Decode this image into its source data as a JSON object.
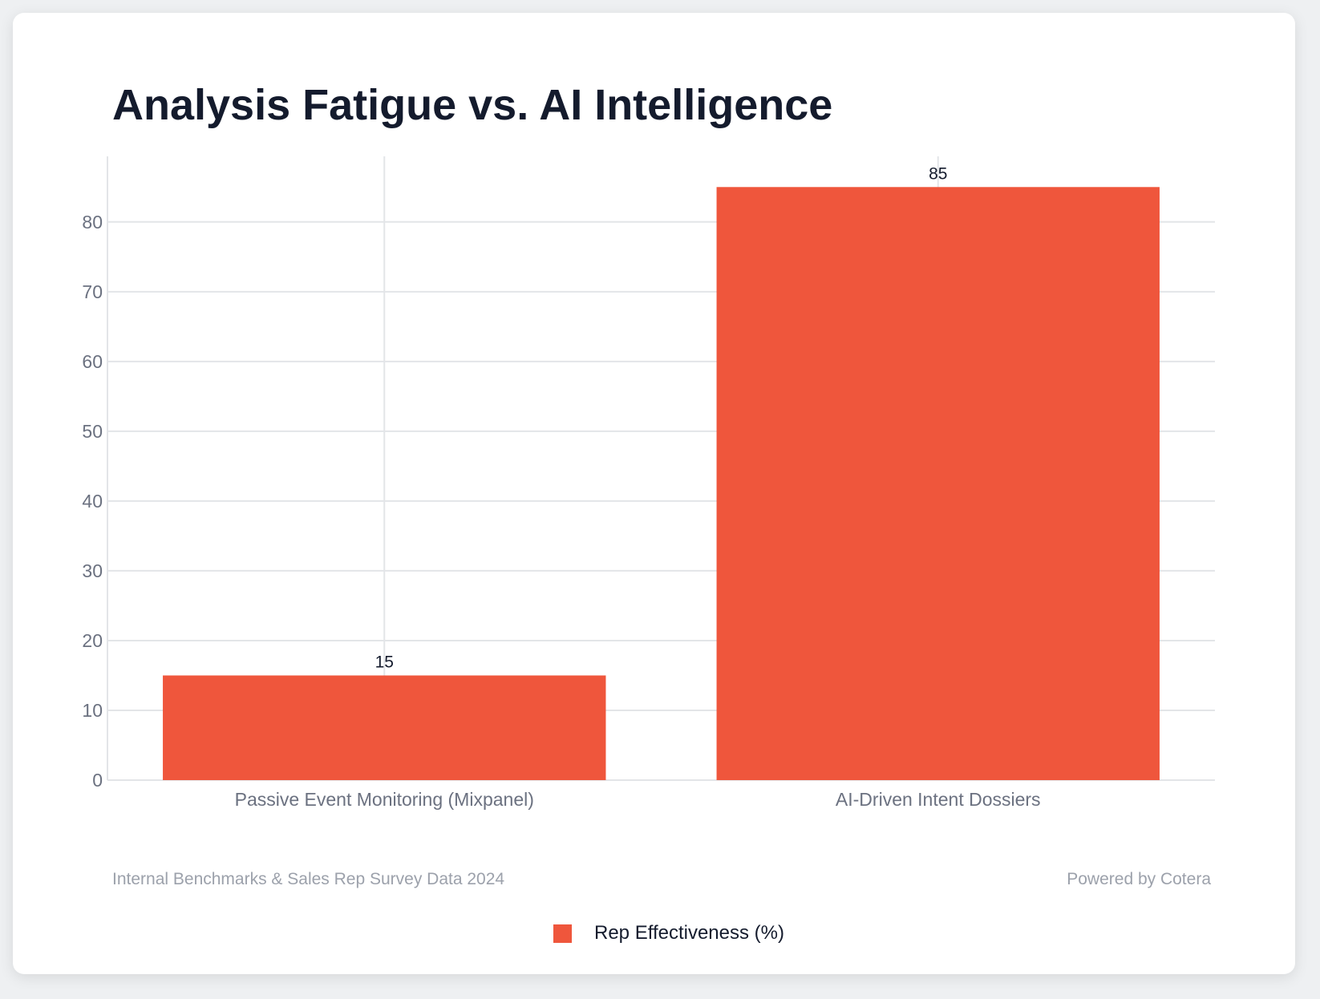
{
  "chart_data": {
    "type": "bar",
    "title": "Analysis Fatigue vs. AI Intelligence",
    "categories": [
      "Passive Event Monitoring (Mixpanel)",
      "AI-Driven Intent Dossiers"
    ],
    "series": [
      {
        "name": "Rep Effectiveness (%)",
        "values": [
          15,
          85
        ],
        "color": "#ef563c"
      }
    ],
    "data_labels": [
      "15",
      "85"
    ],
    "xlabel": "",
    "ylabel": "",
    "ylim": [
      0,
      89.4
    ],
    "yticks": [
      0,
      10,
      20,
      30,
      40,
      50,
      60,
      70,
      80
    ],
    "grid": true,
    "legend_position": "bottom-center"
  },
  "footer": {
    "source": "Internal Benchmarks & Sales Rep Survey Data 2024",
    "powered_by": "Powered by Cotera"
  }
}
